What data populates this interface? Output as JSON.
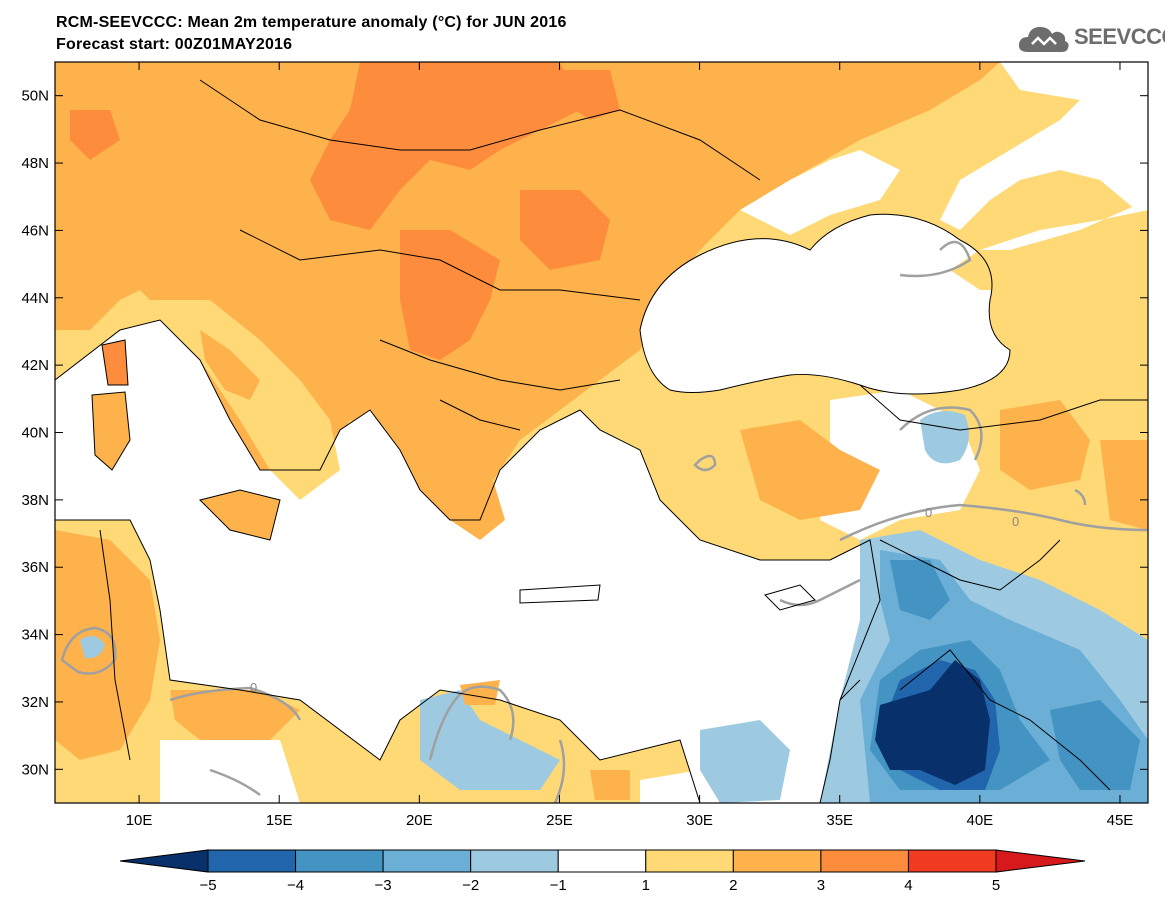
{
  "header": {
    "title_line1": "RCM-SEEVCCC: Mean 2m temperature anomaly (°C) for JUN 2016",
    "title_line2": "Forecast start: 00Z01MAY2016"
  },
  "logo": {
    "text": "SEEVCCC",
    "icon": "cloud-logo-icon"
  },
  "map": {
    "lat_range": [
      29,
      51
    ],
    "lon_range": [
      7,
      46
    ],
    "lat_labels": [
      "50N",
      "48N",
      "46N",
      "44N",
      "42N",
      "40N",
      "38N",
      "36N",
      "34N",
      "32N",
      "30N"
    ],
    "lat_values": [
      50,
      48,
      46,
      44,
      42,
      40,
      38,
      36,
      34,
      32,
      30
    ],
    "lon_labels": [
      "10E",
      "15E",
      "20E",
      "25E",
      "30E",
      "35E",
      "40E",
      "45E"
    ],
    "lon_values": [
      10,
      15,
      20,
      25,
      30,
      35,
      40,
      45
    ],
    "contour_label": "0"
  },
  "colorbar": {
    "levels": [
      "−5",
      "−4",
      "−3",
      "−2",
      "−1",
      "1",
      "2",
      "3",
      "4",
      "5"
    ],
    "colors": [
      "#08306b",
      "#2166ac",
      "#4393c3",
      "#6baed6",
      "#9ecae1",
      "#ffffff",
      "#fed976",
      "#feb24c",
      "#fd8d3c",
      "#f03b20",
      "#d7191c"
    ]
  }
}
